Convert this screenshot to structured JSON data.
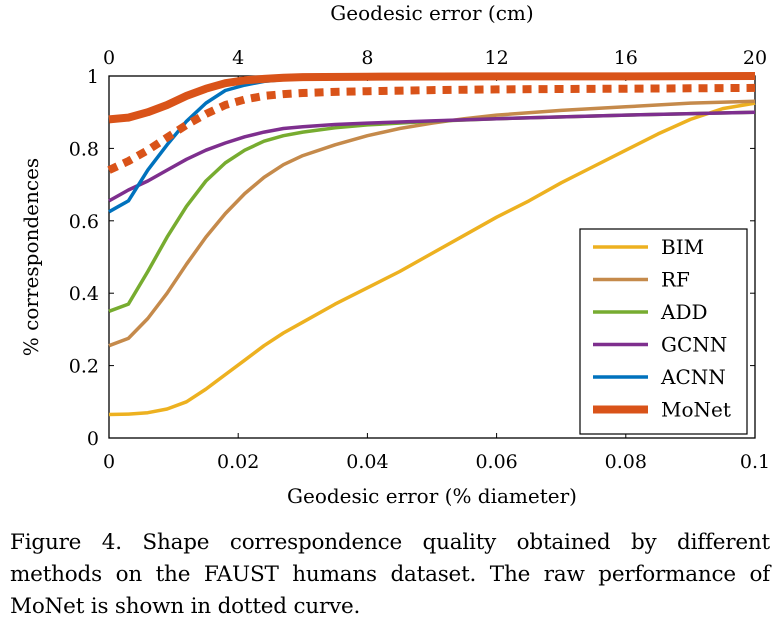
{
  "chart_data": {
    "type": "line",
    "top_axis_title": "Geodesic error (cm)",
    "top_ticks": [
      "0",
      "4",
      "8",
      "12",
      "16",
      "20"
    ],
    "xlabel": "Geodesic error (% diameter)",
    "ylabel": "% correspondences",
    "xlim": [
      0,
      0.1
    ],
    "ylim": [
      0,
      1
    ],
    "x_ticks": [
      "0",
      "0.02",
      "0.04",
      "0.06",
      "0.08",
      "0.1"
    ],
    "y_ticks": [
      "0",
      "0.2",
      "0.4",
      "0.6",
      "0.8",
      "1"
    ],
    "legend_position": "bottom-right",
    "series": [
      {
        "name": "BIM",
        "color": "#EDB120",
        "style": "solid",
        "x": [
          0,
          0.003,
          0.006,
          0.009,
          0.012,
          0.015,
          0.018,
          0.021,
          0.024,
          0.027,
          0.03,
          0.035,
          0.04,
          0.045,
          0.05,
          0.055,
          0.06,
          0.065,
          0.07,
          0.075,
          0.08,
          0.085,
          0.09,
          0.095,
          0.1
        ],
        "y": [
          0.065,
          0.066,
          0.07,
          0.08,
          0.1,
          0.135,
          0.175,
          0.215,
          0.255,
          0.29,
          0.32,
          0.37,
          0.415,
          0.46,
          0.51,
          0.56,
          0.61,
          0.655,
          0.705,
          0.75,
          0.795,
          0.84,
          0.88,
          0.91,
          0.925
        ]
      },
      {
        "name": "RF",
        "color": "#C58A4B",
        "style": "solid",
        "x": [
          0,
          0.003,
          0.006,
          0.009,
          0.012,
          0.015,
          0.018,
          0.021,
          0.024,
          0.027,
          0.03,
          0.035,
          0.04,
          0.045,
          0.05,
          0.055,
          0.06,
          0.07,
          0.08,
          0.09,
          0.1
        ],
        "y": [
          0.255,
          0.275,
          0.33,
          0.4,
          0.48,
          0.555,
          0.62,
          0.675,
          0.72,
          0.755,
          0.78,
          0.81,
          0.835,
          0.855,
          0.87,
          0.882,
          0.892,
          0.905,
          0.915,
          0.925,
          0.93
        ]
      },
      {
        "name": "ADD",
        "color": "#77AC30",
        "style": "solid",
        "x": [
          0,
          0.003,
          0.006,
          0.009,
          0.012,
          0.015,
          0.018,
          0.021,
          0.024,
          0.027,
          0.03,
          0.035,
          0.04,
          0.05,
          0.06,
          0.08,
          0.1
        ],
        "y": [
          0.35,
          0.37,
          0.46,
          0.555,
          0.64,
          0.71,
          0.76,
          0.795,
          0.82,
          0.835,
          0.845,
          0.857,
          0.865,
          0.875,
          0.882,
          0.892,
          0.9
        ]
      },
      {
        "name": "GCNN",
        "color": "#7E2F8E",
        "style": "solid",
        "x": [
          0,
          0.003,
          0.006,
          0.009,
          0.012,
          0.015,
          0.018,
          0.021,
          0.024,
          0.027,
          0.03,
          0.035,
          0.04,
          0.05,
          0.06,
          0.08,
          0.1
        ],
        "y": [
          0.655,
          0.685,
          0.71,
          0.74,
          0.77,
          0.795,
          0.815,
          0.832,
          0.845,
          0.855,
          0.86,
          0.866,
          0.87,
          0.876,
          0.882,
          0.892,
          0.9
        ]
      },
      {
        "name": "ACNN",
        "color": "#0072BD",
        "style": "solid",
        "x": [
          0,
          0.0015,
          0.003,
          0.006,
          0.009,
          0.012,
          0.015,
          0.018,
          0.021,
          0.024,
          0.027,
          0.03
        ],
        "y": [
          0.625,
          0.64,
          0.655,
          0.74,
          0.81,
          0.875,
          0.925,
          0.96,
          0.975,
          0.985,
          0.99,
          0.993
        ]
      },
      {
        "name": "MoNet",
        "color": "#D95319",
        "style": "solid",
        "x": [
          0,
          0.003,
          0.006,
          0.009,
          0.012,
          0.015,
          0.018,
          0.021,
          0.024,
          0.027,
          0.03,
          0.04,
          0.06,
          0.08,
          0.1
        ],
        "y": [
          0.88,
          0.885,
          0.9,
          0.92,
          0.945,
          0.965,
          0.98,
          0.988,
          0.992,
          0.995,
          0.997,
          0.998,
          0.999,
          0.999,
          1.0
        ]
      },
      {
        "name": "MoNet (raw)",
        "color": "#D95319",
        "style": "dotted",
        "x": [
          0,
          0.003,
          0.006,
          0.009,
          0.012,
          0.015,
          0.018,
          0.021,
          0.024,
          0.027,
          0.03,
          0.035,
          0.04,
          0.05,
          0.06,
          0.07,
          0.08,
          0.09,
          0.1
        ],
        "y": [
          0.74,
          0.765,
          0.795,
          0.83,
          0.865,
          0.895,
          0.92,
          0.935,
          0.945,
          0.95,
          0.953,
          0.956,
          0.958,
          0.961,
          0.963,
          0.964,
          0.965,
          0.966,
          0.967
        ]
      }
    ],
    "legend": [
      "BIM",
      "RF",
      "ADD",
      "GCNN",
      "ACNN",
      "MoNet"
    ]
  },
  "caption": {
    "label": "Figure 4.",
    "text": "Shape correspondence quality obtained by different methods on the FAUST humans dataset.  The raw performance of MoNet is shown in dotted curve."
  }
}
